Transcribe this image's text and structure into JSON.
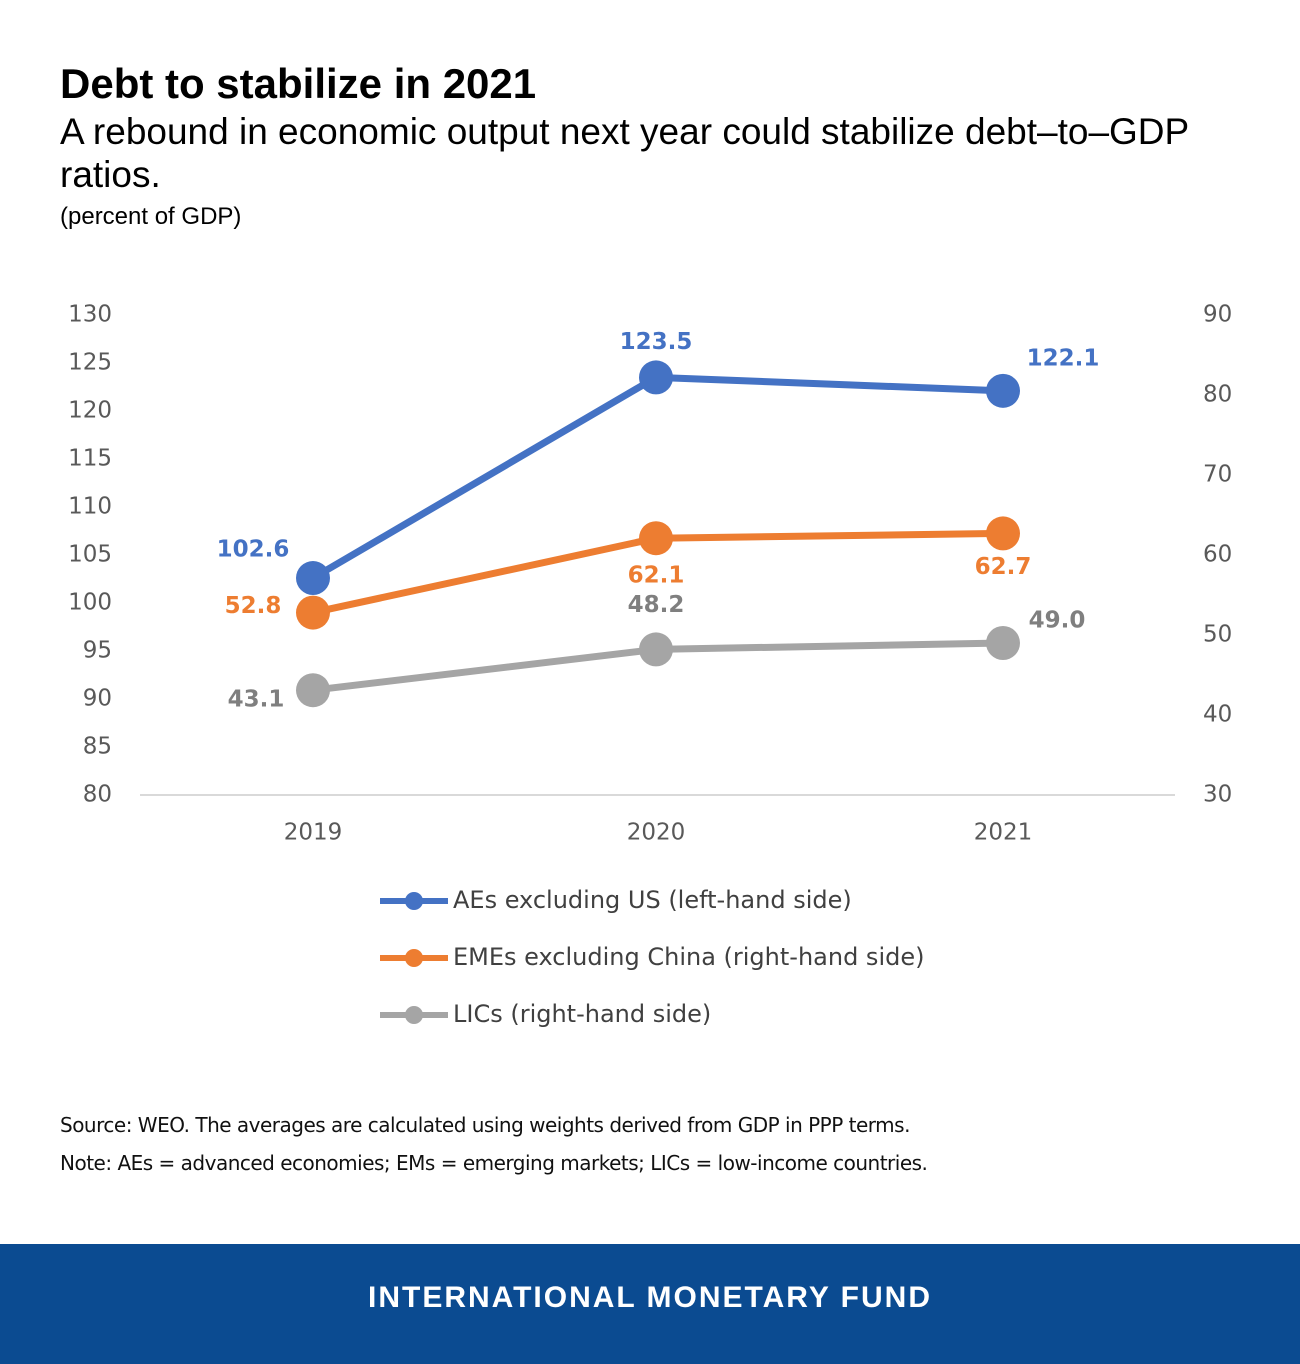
{
  "chart_data": {
    "type": "line",
    "title": "Debt to stabilize in 2021",
    "subtitle": "A rebound in economic output next year could stabilize debt–to–GDP ratios.",
    "unit_label": "(percent of GDP)",
    "categories": [
      "2019",
      "2020",
      "2021"
    ],
    "series": [
      {
        "name": "AEs excluding US (left-hand side)",
        "color": "#4472c4",
        "values": [
          102.6,
          123.5,
          122.1
        ]
      },
      {
        "name": "EMEs excluding China (right-hand side)",
        "color": "#ed7d31",
        "axis": "y2",
        "values": [
          52.8,
          62.1,
          62.7
        ]
      },
      {
        "name": "LICs (right-hand side)",
        "color": "#a5a5a5",
        "axis": "y2",
        "values": [
          43.1,
          48.2,
          49
        ],
        "value_labels": [
          "43.1",
          "48.2",
          "49.0"
        ]
      }
    ],
    "ylim": [
      80,
      130
    ],
    "yticks": [
      80,
      85,
      90,
      95,
      100,
      105,
      110,
      115,
      120,
      125,
      130
    ],
    "y2lim": [
      30,
      90
    ],
    "y2ticks": [
      30,
      40,
      50,
      60,
      70,
      80,
      90
    ],
    "notes": [
      "Source: WEO. The averages are calculated using weights derived from GDP in PPP terms.",
      "Note: AEs = advanced economies; EMs = emerging markets; LICs = low-income countries."
    ]
  },
  "footer": "INTERNATIONAL MONETARY FUND"
}
